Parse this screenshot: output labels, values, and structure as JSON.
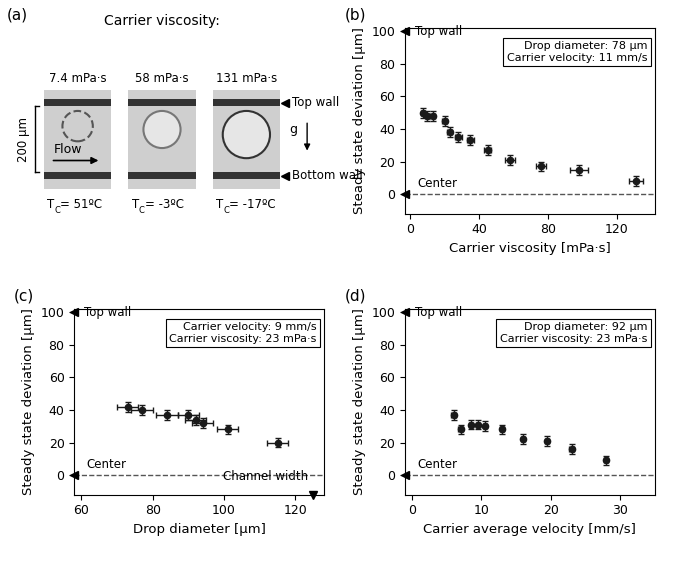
{
  "panel_a": {
    "label": "(a)",
    "title": "Carrier viscosity:",
    "scale_bar": "200 µm",
    "flow": "Flow",
    "gravity": "g",
    "top_wall": "Top wall",
    "bottom_wall": "Bottom wall",
    "frames": [
      {
        "viscosity": "7.4 mPa·s",
        "temperature": {
          "symbol": "T",
          "subscript": "C",
          "value": "= 51ºC"
        }
      },
      {
        "viscosity": "58 mPa·s",
        "temperature": {
          "symbol": "T",
          "subscript": "C",
          "value": "= -3ºC"
        }
      },
      {
        "viscosity": "131 mPa·s",
        "temperature": {
          "symbol": "T",
          "subscript": "C",
          "value": "= -17ºC"
        }
      }
    ]
  },
  "chart_data": [
    {
      "type": "scatter",
      "title": "(b)",
      "x_label": "Carrier viscosity [mPa·s]",
      "y_label": "Steady state deviation [µm]",
      "x": [
        7.4,
        10,
        13,
        20,
        23,
        28,
        35,
        45,
        58,
        76,
        98,
        131
      ],
      "values": [
        50,
        48,
        48,
        45,
        38,
        35,
        33,
        27,
        21,
        17,
        15,
        8
      ],
      "x_err": [
        1,
        1,
        1.5,
        1.5,
        1.5,
        2,
        2,
        2,
        3,
        3,
        5,
        4
      ],
      "y_err": [
        3,
        3,
        3,
        3,
        3,
        3,
        3,
        3,
        3,
        3,
        3,
        3
      ],
      "xlim": [
        -3,
        142
      ],
      "xticks": [
        0,
        40,
        80,
        120
      ],
      "ylim": [
        -12,
        102
      ],
      "yticks": [
        0,
        20,
        40,
        60,
        80,
        100
      ],
      "color": "#1a1a1a",
      "marker": "o",
      "annotations": [
        {
          "text": "Top wall",
          "y": 100
        },
        {
          "text": "Center",
          "y": 0
        }
      ],
      "info": [
        "Drop diameter: 78 µm",
        "Carrier velocity: 11 mm/s"
      ]
    },
    {
      "type": "scatter",
      "title": "(c)",
      "x_label": "Drop diameter [µm]",
      "y_label": "Steady state deviation [µm]",
      "x": [
        73,
        77,
        84,
        90,
        92,
        94,
        101,
        115
      ],
      "values": [
        42,
        40,
        37,
        37,
        34,
        32,
        28,
        20
      ],
      "x_err": [
        3,
        3,
        3,
        3,
        3,
        3,
        3,
        3
      ],
      "y_err": [
        3,
        3,
        3,
        3,
        3,
        3,
        3,
        3
      ],
      "xlim": [
        58,
        128
      ],
      "xticks": [
        60,
        80,
        100,
        120
      ],
      "ylim": [
        -12,
        102
      ],
      "yticks": [
        0,
        20,
        40,
        60,
        80,
        100
      ],
      "color": "#1a1a1a",
      "marker": "o",
      "annotations": [
        {
          "text": "Top wall",
          "y": 100
        },
        {
          "text": "Center",
          "y": 0
        },
        {
          "text": "Channel width",
          "x": 125
        }
      ],
      "info": [
        "Carrier velocity: 9 mm/s",
        "Carrier viscosity: 23 mPa·s"
      ]
    },
    {
      "type": "scatter",
      "title": "(d)",
      "x_label": "Carrier average velocity [mm/s]",
      "y_label": "Steady state deviation [µm]",
      "x": [
        6,
        7,
        8.5,
        9.5,
        10.5,
        13,
        16,
        19.5,
        23,
        28
      ],
      "values": [
        37,
        28,
        31,
        31,
        30,
        28,
        22,
        21,
        16,
        9
      ],
      "x_err": [
        0.3,
        0.3,
        0.3,
        0.3,
        0.3,
        0.3,
        0.3,
        0.3,
        0.3,
        0.3
      ],
      "y_err": [
        3,
        3,
        3,
        3,
        3,
        3,
        3,
        3,
        3,
        3
      ],
      "xlim": [
        -1,
        35
      ],
      "xticks": [
        0,
        10,
        20,
        30
      ],
      "ylim": [
        -12,
        102
      ],
      "yticks": [
        0,
        20,
        40,
        60,
        80,
        100
      ],
      "color": "#1a1a1a",
      "marker": "o",
      "annotations": [
        {
          "text": "Top wall",
          "y": 100
        },
        {
          "text": "Center",
          "y": 0
        }
      ],
      "info": [
        "Drop diameter: 92 µm",
        "Carrier viscosity: 23 mPa·s"
      ]
    }
  ]
}
